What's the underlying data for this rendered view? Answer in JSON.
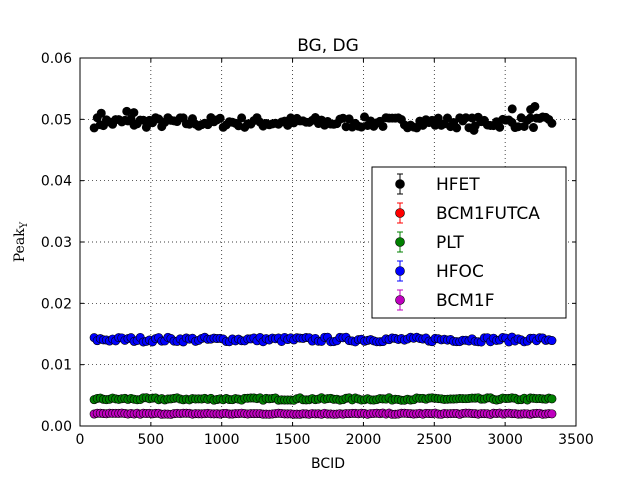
{
  "chart_data": {
    "type": "scatter",
    "title": "BG, DG",
    "xlabel": "BCID",
    "ylabel": "Peak",
    "ylabel_sub": "Y",
    "xlim": [
      0,
      3500
    ],
    "ylim": [
      0,
      0.06
    ],
    "xticks": [
      "0",
      "500",
      "1000",
      "1500",
      "2000",
      "2500",
      "3000",
      "3500"
    ],
    "yticks": [
      "0.00",
      "0.01",
      "0.02",
      "0.03",
      "0.04",
      "0.05",
      "0.06"
    ],
    "grid": true,
    "legend_position": "center-right",
    "series": [
      {
        "name": "HFET",
        "color": "#000000",
        "base": 0.0495,
        "amp": 0.0009,
        "n": 150,
        "x_start": 100,
        "x_end": 3330,
        "outliers": [
          [
            150,
            0.051
          ],
          [
            330,
            0.0513
          ],
          [
            380,
            0.0511
          ],
          [
            2780,
            0.0482
          ],
          [
            3050,
            0.0517
          ],
          [
            3210,
            0.0521
          ],
          [
            3180,
            0.0516
          ]
        ]
      },
      {
        "name": "BCM1FUTCA",
        "color": "#ff0000",
        "base": null,
        "amp": 0,
        "n": 0,
        "x_start": 0,
        "x_end": 0,
        "outliers": []
      },
      {
        "name": "PLT",
        "color": "#008000",
        "base": 0.0044,
        "amp": 0.0002,
        "n": 150,
        "x_start": 100,
        "x_end": 3330,
        "outliers": []
      },
      {
        "name": "HFOC",
        "color": "#0000ff",
        "base": 0.0141,
        "amp": 0.0004,
        "n": 150,
        "x_start": 100,
        "x_end": 3330,
        "outliers": []
      },
      {
        "name": "BCM1F",
        "color": "#bf00bf",
        "base": 0.002,
        "amp": 0.0001,
        "n": 150,
        "x_start": 100,
        "x_end": 3330,
        "outliers": []
      }
    ]
  }
}
